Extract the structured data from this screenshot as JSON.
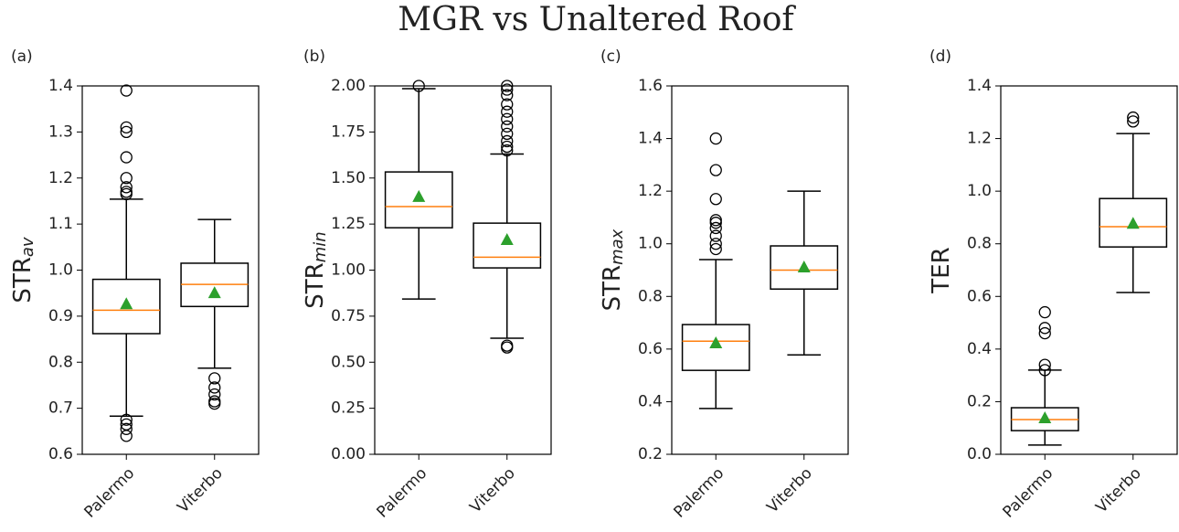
{
  "title": "MGR vs Unaltered Roof",
  "chart_data": [
    {
      "type": "box",
      "panel_label": "(a)",
      "ylabel": "STR",
      "ylabel_sub": "av",
      "categories": [
        "Palermo",
        "Viterbo"
      ],
      "median_color": "#ff7f0e",
      "mean_color": "#2ca02c",
      "boxes": [
        {
          "whislo": 0.683,
          "q1": 0.862,
          "med": 0.913,
          "q3": 0.98,
          "whishi": 1.154,
          "mean": 0.927,
          "fliers": [
            1.39,
            1.31,
            1.3,
            1.245,
            1.2,
            1.18,
            1.17,
            1.165,
            0.675,
            0.665,
            0.655,
            0.64
          ]
        },
        {
          "whislo": 0.787,
          "q1": 0.921,
          "med": 0.969,
          "q3": 1.015,
          "whishi": 1.11,
          "mean": 0.951,
          "fliers": [
            0.765,
            0.745,
            0.73,
            0.715,
            0.71
          ]
        }
      ],
      "ylim": [
        0.6,
        1.4
      ],
      "yticks": [
        0.6,
        0.7,
        0.8,
        0.9,
        {
          "value": 1,
          "label": "1.0"
        },
        1.1,
        1.2,
        1.3,
        1.4
      ]
    },
    {
      "type": "box",
      "panel_label": "(b)",
      "ylabel": "STR",
      "ylabel_sub": "min",
      "categories": [
        "Palermo",
        "Viterbo"
      ],
      "median_color": "#ff7f0e",
      "mean_color": "#2ca02c",
      "boxes": [
        {
          "whislo": 0.843,
          "q1": 1.23,
          "med": 1.345,
          "q3": 1.533,
          "whishi": 1.985,
          "mean": 1.4,
          "fliers": [
            2.0
          ]
        },
        {
          "whislo": 0.63,
          "q1": 1.012,
          "med": 1.07,
          "q3": 1.255,
          "whishi": 1.63,
          "mean": 1.166,
          "fliers": [
            1.65,
            1.67,
            1.7,
            1.74,
            1.78,
            1.82,
            1.86,
            1.9,
            1.95,
            1.98,
            2.0,
            0.59,
            0.58
          ]
        }
      ],
      "ylim": [
        0,
        2
      ],
      "yticks": [
        {
          "value": 0,
          "label": "0.00"
        },
        0.25,
        {
          "value": 0.5,
          "label": "0.50"
        },
        0.75,
        {
          "value": 1,
          "label": "1.00"
        },
        1.25,
        {
          "value": 1.5,
          "label": "1.50"
        },
        1.75,
        {
          "value": 2,
          "label": "2.00"
        }
      ]
    },
    {
      "type": "box",
      "panel_label": "(c)",
      "ylabel": "STR",
      "ylabel_sub": "max",
      "categories": [
        "Palermo",
        "Viterbo"
      ],
      "median_color": "#ff7f0e",
      "mean_color": "#2ca02c",
      "boxes": [
        {
          "whislo": 0.374,
          "q1": 0.519,
          "med": 0.63,
          "q3": 0.693,
          "whishi": 0.94,
          "mean": 0.624,
          "fliers": [
            0.98,
            1.0,
            1.03,
            1.06,
            1.08,
            1.09,
            1.17,
            1.28,
            1.4
          ]
        },
        {
          "whislo": 0.578,
          "q1": 0.828,
          "med": 0.9,
          "q3": 0.992,
          "whishi": 1.2,
          "mean": 0.912,
          "fliers": []
        }
      ],
      "ylim": [
        0.2,
        1.6
      ],
      "yticks": [
        0.2,
        0.4,
        0.6,
        0.8,
        {
          "value": 1,
          "label": "1.0"
        },
        1.2,
        1.4,
        1.6
      ]
    },
    {
      "type": "box",
      "panel_label": "(d)",
      "ylabel": "TER",
      "categories": [
        "Palermo",
        "Viterbo"
      ],
      "median_color": "#ff7f0e",
      "mean_color": "#2ca02c",
      "boxes": [
        {
          "whislo": 0.035,
          "q1": 0.09,
          "med": 0.132,
          "q3": 0.177,
          "whishi": 0.32,
          "mean": 0.139,
          "fliers": [
            0.32,
            0.34,
            0.46,
            0.48,
            0.54
          ]
        },
        {
          "whislo": 0.615,
          "q1": 0.788,
          "med": 0.865,
          "q3": 0.972,
          "whishi": 1.219,
          "mean": 0.878,
          "fliers": [
            1.265,
            1.28
          ]
        }
      ],
      "ylim": [
        0,
        1.4
      ],
      "yticks": [
        {
          "value": 0,
          "label": "0.0"
        },
        0.2,
        0.4,
        0.6,
        0.8,
        {
          "value": 1,
          "label": "1.0"
        },
        1.2,
        1.4
      ]
    }
  ]
}
